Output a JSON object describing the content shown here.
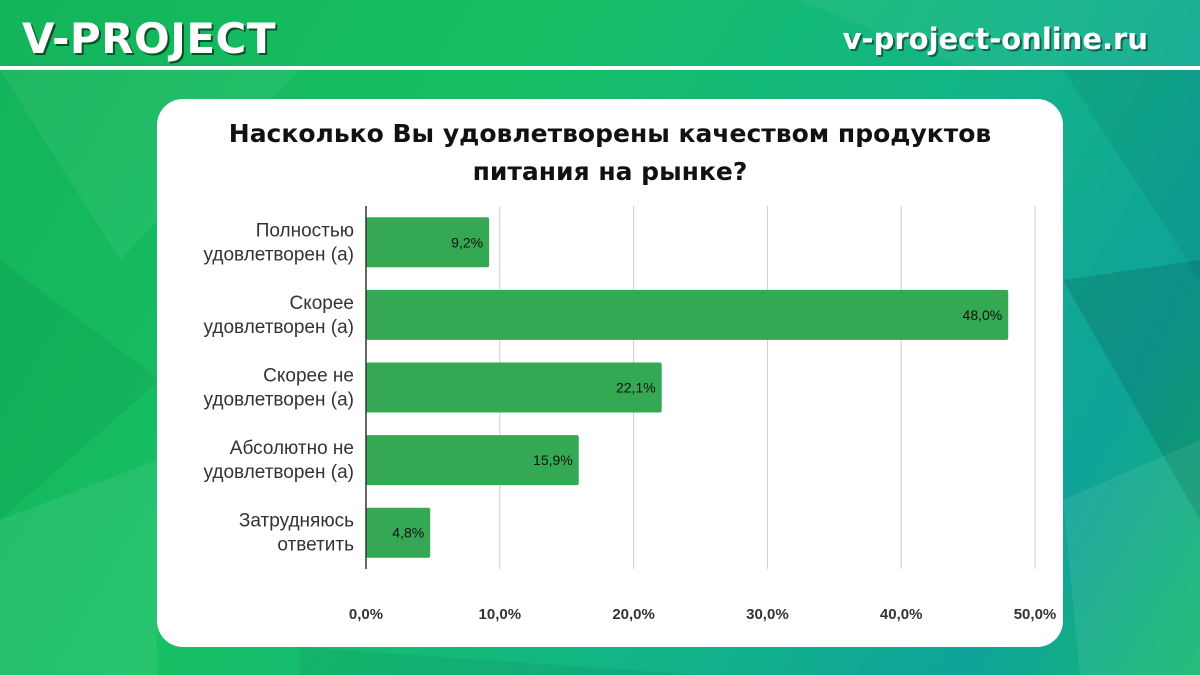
{
  "header": {
    "brand": "V-PROJECT",
    "site": "v-project-online.ru"
  },
  "chart_data": {
    "type": "bar",
    "orientation": "horizontal",
    "title": "Насколько Вы удовлетворены качеством продуктов питания на рынке?",
    "title_lines": [
      "Насколько Вы удовлетворены качеством продуктов",
      "питания на рынке?"
    ],
    "categories": [
      [
        "Полностью",
        "удовлетворен (а)"
      ],
      [
        "Скорее",
        "удовлетворен (а)"
      ],
      [
        "Скорее не",
        "удовлетворен (а)"
      ],
      [
        "Абсолютно не",
        "удовлетворен (а)"
      ],
      [
        "Затрудняюсь",
        "ответить"
      ]
    ],
    "values": [
      9.2,
      48.0,
      22.1,
      15.9,
      4.8
    ],
    "value_labels": [
      "9,2%",
      "48,0%",
      "22,1%",
      "15,9%",
      "4,8%"
    ],
    "xlim": [
      0,
      50
    ],
    "xticks": [
      0,
      10,
      20,
      30,
      40,
      50
    ],
    "xtick_labels": [
      "0,0%",
      "10,0%",
      "20,0%",
      "30,0%",
      "40,0%",
      "50,0%"
    ],
    "xlabel": "",
    "ylabel": "",
    "grid": true,
    "legend": "none",
    "bar_color": "#34a853"
  }
}
